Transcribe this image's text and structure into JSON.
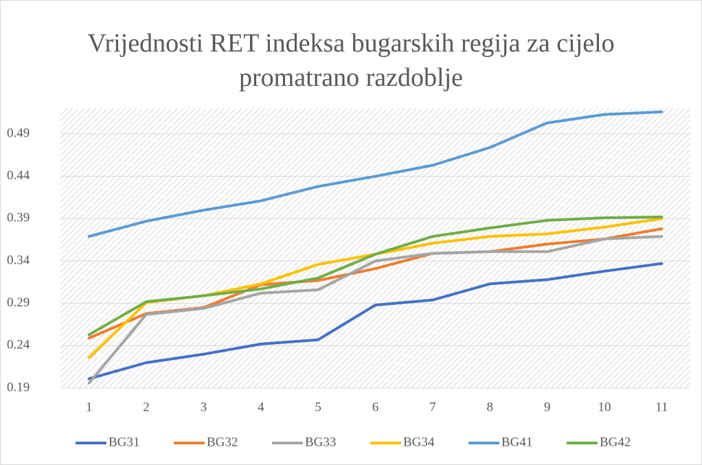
{
  "chart_data": {
    "type": "line",
    "title": "Vrijednosti RET indeksa bugarskih regija za cijelo promatrano razdoblje",
    "categories": [
      1,
      2,
      3,
      4,
      5,
      6,
      7,
      8,
      9,
      10,
      11
    ],
    "series": [
      {
        "name": "BG31",
        "color": "#4472c4",
        "values": [
          0.201,
          0.22,
          0.23,
          0.242,
          0.247,
          0.288,
          0.294,
          0.313,
          0.318,
          0.328,
          0.337
        ]
      },
      {
        "name": "BG32",
        "color": "#ed7d31",
        "values": [
          0.249,
          0.278,
          0.285,
          0.312,
          0.317,
          0.331,
          0.349,
          0.351,
          0.36,
          0.366,
          0.378
        ]
      },
      {
        "name": "BG33",
        "color": "#a5a5a5",
        "values": [
          0.196,
          0.277,
          0.284,
          0.302,
          0.306,
          0.34,
          0.349,
          0.351,
          0.351,
          0.366,
          0.369
        ]
      },
      {
        "name": "BG34",
        "color": "#ffc000",
        "values": [
          0.226,
          0.291,
          0.299,
          0.313,
          0.336,
          0.348,
          0.361,
          0.369,
          0.372,
          0.38,
          0.39
        ]
      },
      {
        "name": "BG41",
        "color": "#5b9bd5",
        "values": [
          0.369,
          0.387,
          0.4,
          0.411,
          0.428,
          0.44,
          0.453,
          0.474,
          0.503,
          0.513,
          0.516
        ]
      },
      {
        "name": "BG42",
        "color": "#70ad47",
        "values": [
          0.253,
          0.292,
          0.299,
          0.307,
          0.32,
          0.348,
          0.369,
          0.379,
          0.388,
          0.391,
          0.392
        ]
      }
    ],
    "ylim": [
      0.19,
      0.52
    ],
    "yticks": [
      0.19,
      0.24,
      0.29,
      0.34,
      0.39,
      0.44,
      0.49
    ],
    "grid": true,
    "legend": "bottom"
  }
}
